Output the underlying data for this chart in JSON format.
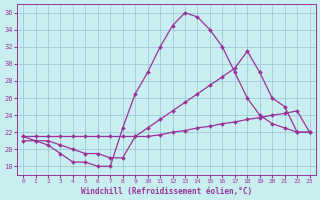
{
  "xlabel": "Windchill (Refroidissement éolien,°C)",
  "background_color": "#c8eef0",
  "grid_color": "#a0c8d8",
  "line_color": "#993399",
  "xlim": [
    -0.5,
    23.5
  ],
  "ylim": [
    17.0,
    37.0
  ],
  "yticks": [
    18,
    20,
    22,
    24,
    26,
    28,
    30,
    32,
    34,
    36
  ],
  "xticks": [
    0,
    1,
    2,
    3,
    4,
    5,
    6,
    7,
    8,
    9,
    10,
    11,
    12,
    13,
    14,
    15,
    16,
    17,
    18,
    19,
    20,
    21,
    22,
    23
  ],
  "series": [
    {
      "x": [
        0,
        1,
        2,
        3,
        4,
        5,
        6,
        7,
        8,
        9,
        10,
        11,
        12,
        13,
        14,
        15,
        16,
        17,
        18,
        19,
        20,
        21,
        22,
        23
      ],
      "y": [
        21.0,
        21.0,
        20.5,
        19.5,
        18.5,
        18.5,
        18.0,
        18.0,
        22.5,
        26.5,
        29.0,
        32.0,
        34.5,
        36.0,
        35.5,
        34.0,
        32.0,
        29.0,
        26.0,
        24.0,
        23.0,
        22.5,
        22.0,
        22.0
      ]
    },
    {
      "x": [
        0,
        1,
        2,
        3,
        4,
        5,
        6,
        7,
        8,
        9,
        10,
        11,
        12,
        13,
        14,
        15,
        16,
        17,
        18,
        19,
        20,
        21,
        22,
        23
      ],
      "y": [
        21.5,
        21.0,
        21.0,
        20.5,
        20.0,
        19.5,
        19.5,
        19.0,
        19.0,
        21.5,
        22.5,
        23.5,
        24.5,
        25.5,
        26.5,
        27.5,
        28.5,
        29.5,
        31.5,
        29.0,
        26.0,
        25.0,
        22.0,
        22.0
      ]
    },
    {
      "x": [
        0,
        1,
        2,
        3,
        4,
        5,
        6,
        7,
        8,
        9,
        10,
        11,
        12,
        13,
        14,
        15,
        16,
        17,
        18,
        19,
        20,
        21,
        22,
        23
      ],
      "y": [
        21.5,
        21.5,
        21.5,
        21.5,
        21.5,
        21.5,
        21.5,
        21.5,
        21.5,
        21.5,
        21.5,
        21.7,
        22.0,
        22.2,
        22.5,
        22.7,
        23.0,
        23.2,
        23.5,
        23.7,
        24.0,
        24.2,
        24.5,
        22.0
      ]
    }
  ]
}
